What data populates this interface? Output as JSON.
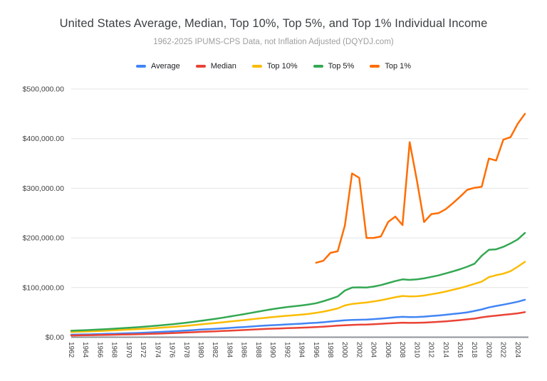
{
  "title": "United States Average, Median, Top 10%, Top 5%, and Top 1% Individual Income",
  "subtitle": "1962-2025 IPUMS-CPS Data, not Inflation Adjusted (DQYDJ.com)",
  "chart_data": {
    "type": "line",
    "grid": true,
    "legend_position": "top",
    "ylim": [
      0,
      500000
    ],
    "y_ticks": [
      "$0.00",
      "$100,000.00",
      "$200,000.00",
      "$300,000.00",
      "$400,000.00",
      "$500,000.00"
    ],
    "x_ticks": [
      "1962",
      "1964",
      "1966",
      "1968",
      "1970",
      "1972",
      "1974",
      "1976",
      "1978",
      "1980",
      "1982",
      "1984",
      "1986",
      "1988",
      "1990",
      "1992",
      "1994",
      "1996",
      "1998",
      "2000",
      "2002",
      "2004",
      "2006",
      "2008",
      "2010",
      "2012",
      "2014",
      "2016",
      "2018",
      "2020",
      "2022",
      "2024"
    ],
    "years": [
      1962,
      1963,
      1964,
      1965,
      1966,
      1967,
      1968,
      1969,
      1970,
      1971,
      1972,
      1973,
      1974,
      1975,
      1976,
      1977,
      1978,
      1979,
      1980,
      1981,
      1982,
      1983,
      1984,
      1985,
      1986,
      1987,
      1988,
      1989,
      1990,
      1991,
      1992,
      1993,
      1994,
      1995,
      1996,
      1997,
      1998,
      1999,
      2000,
      2001,
      2002,
      2003,
      2004,
      2005,
      2006,
      2007,
      2008,
      2009,
      2010,
      2011,
      2012,
      2013,
      2014,
      2015,
      2016,
      2017,
      2018,
      2019,
      2020,
      2021,
      2022,
      2023,
      2024,
      2025
    ],
    "series": [
      {
        "name": "Average",
        "color": "#4285F4",
        "start_year": 1962,
        "values": [
          5000,
          5300,
          5600,
          5900,
          6300,
          6700,
          7100,
          7600,
          8000,
          8500,
          9000,
          9600,
          10300,
          11000,
          11800,
          12600,
          13500,
          14400,
          15300,
          16200,
          17000,
          17800,
          18700,
          19600,
          20500,
          21500,
          22500,
          23500,
          24300,
          25000,
          25800,
          26500,
          27300,
          28200,
          29000,
          30200,
          31500,
          32800,
          34000,
          34800,
          35200,
          35600,
          36400,
          37500,
          38800,
          40200,
          41000,
          40400,
          40800,
          41500,
          42800,
          43800,
          45200,
          46800,
          48200,
          50000,
          53000,
          56000,
          60000,
          63000,
          65500,
          68500,
          71500,
          75500
        ]
      },
      {
        "name": "Median",
        "color": "#EA4335",
        "start_year": 1962,
        "values": [
          3500,
          3700,
          3900,
          4100,
          4400,
          4700,
          5000,
          5300,
          5600,
          5900,
          6300,
          6700,
          7200,
          7700,
          8200,
          8800,
          9400,
          10000,
          10700,
          11300,
          11900,
          12500,
          13100,
          13800,
          14500,
          15200,
          15900,
          16600,
          17200,
          17700,
          18200,
          18700,
          19200,
          19800,
          20500,
          21300,
          22200,
          23200,
          24000,
          24800,
          25200,
          25600,
          26200,
          27000,
          27800,
          28600,
          29200,
          28800,
          29000,
          29400,
          30200,
          31000,
          32000,
          33200,
          34500,
          36000,
          37500,
          40000,
          42000,
          43500,
          45000,
          46500,
          48000,
          50500
        ]
      },
      {
        "name": "Top 10%",
        "color": "#FBBC04",
        "start_year": 1962,
        "values": [
          10500,
          11000,
          11500,
          12000,
          12600,
          13200,
          13900,
          14600,
          15300,
          16000,
          16800,
          17700,
          18600,
          19600,
          20600,
          21800,
          23000,
          24400,
          25800,
          27200,
          28600,
          30000,
          31500,
          33000,
          34500,
          36000,
          37600,
          39200,
          40600,
          42000,
          43200,
          44400,
          45600,
          47000,
          49000,
          51500,
          54500,
          58000,
          64000,
          67000,
          68500,
          70000,
          72000,
          74500,
          77500,
          80500,
          83000,
          82000,
          82500,
          84000,
          86500,
          89000,
          92000,
          95500,
          99000,
          103000,
          107500,
          112000,
          121000,
          125000,
          128000,
          133000,
          142000,
          152000
        ]
      },
      {
        "name": "Top 5%",
        "color": "#34A853",
        "start_year": 1962,
        "values": [
          13000,
          13600,
          14200,
          14900,
          15600,
          16400,
          17200,
          18100,
          19000,
          20000,
          21000,
          22200,
          23400,
          24700,
          26000,
          27600,
          29300,
          31000,
          33000,
          35000,
          37000,
          39200,
          41600,
          44000,
          46500,
          49000,
          51600,
          54200,
          56600,
          58800,
          60800,
          62400,
          64000,
          66000,
          68500,
          72500,
          77000,
          82000,
          94000,
          100000,
          100500,
          100000,
          102000,
          105000,
          109000,
          113000,
          116500,
          115500,
          116500,
          118500,
          121500,
          124500,
          128500,
          132500,
          137000,
          142000,
          148000,
          164000,
          176000,
          177000,
          182000,
          189000,
          197000,
          210000
        ]
      },
      {
        "name": "Top 1%",
        "color": "#FF6D01",
        "start_year": 1996,
        "values": [
          150000,
          154000,
          170000,
          173000,
          225000,
          330000,
          321000,
          200000,
          200000,
          203000,
          232000,
          243000,
          226000,
          393000,
          316000,
          232000,
          248000,
          250000,
          258000,
          270000,
          283000,
          297000,
          301000,
          303000,
          360000,
          356000,
          398000,
          403000,
          430000,
          450000
        ]
      }
    ]
  }
}
